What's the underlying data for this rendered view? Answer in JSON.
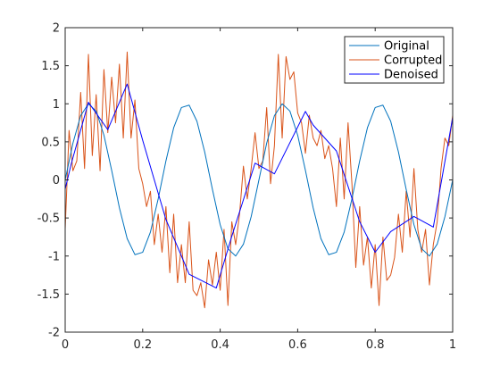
{
  "chart_data": {
    "type": "line",
    "title": "",
    "xlabel": "",
    "ylabel": "",
    "xlim": [
      0,
      1
    ],
    "ylim": [
      -2,
      2
    ],
    "xticks": [
      0,
      0.2,
      0.4,
      0.6,
      0.8,
      1
    ],
    "xtick_labels": [
      "0",
      "0.2",
      "0.4",
      "0.6",
      "0.8",
      "1"
    ],
    "yticks": [
      -2,
      -1.5,
      -1,
      -0.5,
      0,
      0.5,
      1,
      1.5,
      2
    ],
    "ytick_labels": [
      "-2",
      "-1.5",
      "-1",
      "-0.5",
      "0",
      "0.5",
      "1",
      "1.5",
      "2"
    ],
    "grid": false,
    "box": true,
    "legend_position": "top-right",
    "series": [
      {
        "name": "Original",
        "color": "#0072BD",
        "width": 1,
        "x": [
          0,
          0.02,
          0.04,
          0.06,
          0.08,
          0.1,
          0.12,
          0.14,
          0.16,
          0.18,
          0.2,
          0.22,
          0.24,
          0.26,
          0.28,
          0.3,
          0.32,
          0.34,
          0.36,
          0.38,
          0.4,
          0.42,
          0.44,
          0.46,
          0.48,
          0.5,
          0.52,
          0.54,
          0.56,
          0.58,
          0.6,
          0.62,
          0.64,
          0.66,
          0.68,
          0.7,
          0.72,
          0.74,
          0.76,
          0.78,
          0.8,
          0.82,
          0.84,
          0.86,
          0.88,
          0.9,
          0.92,
          0.94,
          0.96,
          0.98,
          1
        ],
        "y": [
          0,
          0.482,
          0.844,
          1.0,
          0.904,
          0.588,
          0.125,
          -0.368,
          -0.771,
          -0.982,
          -0.951,
          -0.685,
          -0.249,
          0.249,
          0.685,
          0.951,
          0.982,
          0.771,
          0.368,
          -0.125,
          -0.588,
          -0.904,
          -1.0,
          -0.844,
          -0.482,
          0.0,
          0.482,
          0.844,
          1.0,
          0.904,
          0.588,
          0.125,
          -0.368,
          -0.771,
          -0.982,
          -0.951,
          -0.685,
          -0.249,
          0.249,
          0.685,
          0.951,
          0.982,
          0.771,
          0.368,
          -0.125,
          -0.588,
          -0.904,
          -1.0,
          -0.844,
          -0.482,
          0.0
        ]
      },
      {
        "name": "Corrupted",
        "color": "#D95319",
        "width": 1,
        "x": [
          0,
          0.01,
          0.02,
          0.03,
          0.04,
          0.05,
          0.06,
          0.07,
          0.08,
          0.09,
          0.1,
          0.11,
          0.12,
          0.13,
          0.14,
          0.15,
          0.16,
          0.17,
          0.18,
          0.19,
          0.2,
          0.21,
          0.22,
          0.23,
          0.24,
          0.25,
          0.26,
          0.27,
          0.28,
          0.29,
          0.3,
          0.31,
          0.32,
          0.33,
          0.34,
          0.35,
          0.36,
          0.37,
          0.38,
          0.39,
          0.4,
          0.41,
          0.42,
          0.43,
          0.44,
          0.45,
          0.46,
          0.47,
          0.48,
          0.49,
          0.5,
          0.51,
          0.52,
          0.53,
          0.54,
          0.55,
          0.56,
          0.57,
          0.58,
          0.59,
          0.6,
          0.61,
          0.62,
          0.63,
          0.64,
          0.65,
          0.66,
          0.67,
          0.68,
          0.69,
          0.7,
          0.71,
          0.72,
          0.73,
          0.74,
          0.75,
          0.76,
          0.77,
          0.78,
          0.79,
          0.8,
          0.81,
          0.82,
          0.83,
          0.84,
          0.85,
          0.86,
          0.87,
          0.88,
          0.89,
          0.9,
          0.91,
          0.92,
          0.93,
          0.94,
          0.95,
          0.96,
          0.97,
          0.98,
          0.99,
          1
        ],
        "y": [
          -0.65,
          0.65,
          0.12,
          0.25,
          1.15,
          0.15,
          1.65,
          0.32,
          1.12,
          0.12,
          1.45,
          0.62,
          1.35,
          0.75,
          1.52,
          0.55,
          1.68,
          0.55,
          1.05,
          0.15,
          -0.05,
          -0.35,
          -0.15,
          -0.85,
          -0.45,
          -0.95,
          -0.35,
          -1.22,
          -0.45,
          -1.35,
          -0.85,
          -1.35,
          -0.55,
          -1.45,
          -1.52,
          -1.35,
          -1.68,
          -1.05,
          -1.38,
          -0.95,
          -1.45,
          -0.65,
          -1.65,
          -0.55,
          -0.85,
          -0.45,
          0.18,
          -0.25,
          0.15,
          0.62,
          0.15,
          0.25,
          0.95,
          -0.05,
          0.45,
          1.65,
          0.55,
          1.62,
          1.32,
          1.42,
          0.88,
          0.75,
          0.35,
          0.85,
          0.55,
          0.45,
          0.65,
          0.28,
          0.45,
          0.15,
          -0.35,
          0.55,
          -0.25,
          0.75,
          -0.05,
          -1.15,
          -0.35,
          -1.12,
          -0.75,
          -1.42,
          -0.85,
          -1.65,
          -0.75,
          -1.32,
          -1.25,
          -1.02,
          -0.45,
          -0.95,
          -0.15,
          -0.75,
          0.15,
          -0.65,
          -0.95,
          -0.65,
          -1.38,
          -0.85,
          -0.55,
          0.15,
          0.55,
          0.45,
          0.85
        ]
      },
      {
        "name": "Denoised",
        "color": "#0000FF",
        "width": 1,
        "x": [
          0,
          0.015,
          0.06,
          0.11,
          0.16,
          0.2,
          0.26,
          0.32,
          0.39,
          0.43,
          0.49,
          0.54,
          0.62,
          0.64,
          0.7,
          0.76,
          0.8,
          0.84,
          0.9,
          0.95,
          1
        ],
        "y": [
          -0.12,
          0.2,
          1.02,
          0.66,
          1.26,
          0.52,
          -0.52,
          -1.24,
          -1.42,
          -0.74,
          0.22,
          0.08,
          0.9,
          0.72,
          0.38,
          -0.55,
          -0.95,
          -0.68,
          -0.48,
          -0.62,
          0.82
        ]
      }
    ]
  }
}
